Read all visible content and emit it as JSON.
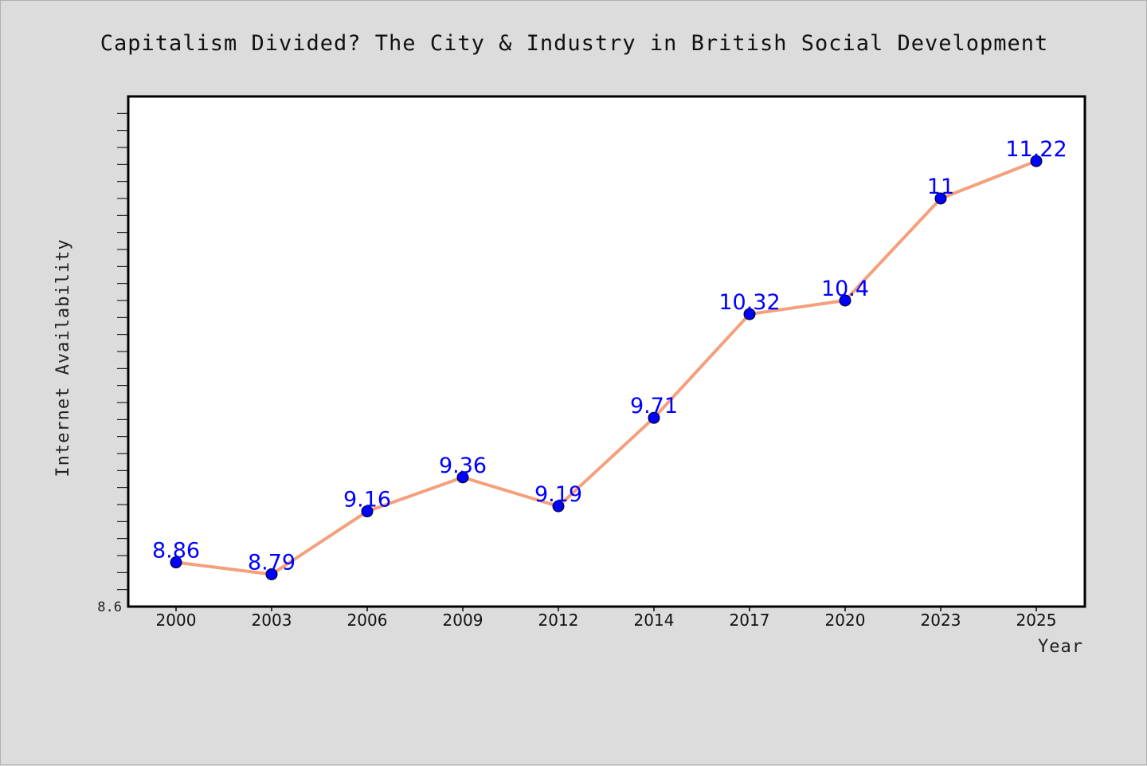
{
  "chart_data": {
    "type": "line",
    "title": "Capitalism Divided? The City & Industry in British Social Development",
    "xlabel": "Year",
    "ylabel": "Internet Availability",
    "categories": [
      "2000",
      "2003",
      "2006",
      "2009",
      "2012",
      "2014",
      "2017",
      "2020",
      "2023",
      "2025"
    ],
    "series": [
      {
        "values": [
          8.86,
          8.79,
          9.16,
          9.36,
          9.19,
          9.71,
          10.32,
          10.4,
          11,
          11.22
        ]
      }
    ],
    "data_labels": [
      "8.86",
      "8.79",
      "9.16",
      "9.36",
      "9.19",
      "9.71",
      "10.32",
      "10.4",
      "11",
      "11.22"
    ],
    "ylim": [
      8.6,
      11.6
    ],
    "ymin_label": "8.6",
    "y_minor_tick_step": 0.1,
    "grid": false,
    "legend": "none",
    "colors": {
      "line": "#f4a07c",
      "marker": "#0000ff",
      "data_label": "#0000ff",
      "plot_background": "#ffffff",
      "page_background": "#dcdcdc"
    }
  }
}
